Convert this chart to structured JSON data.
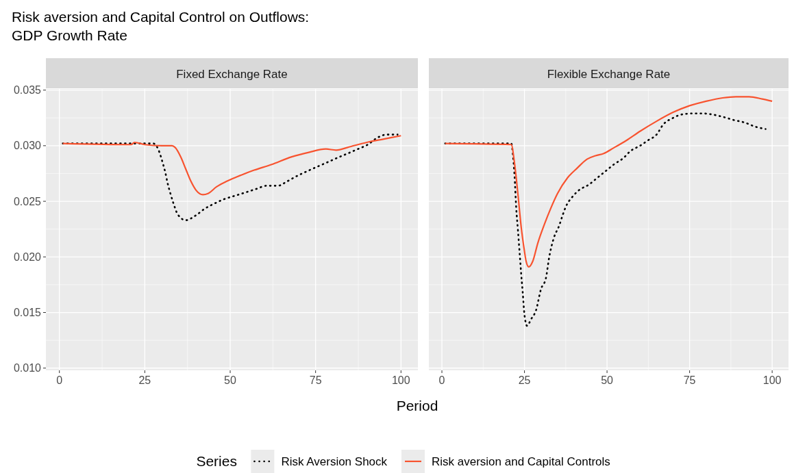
{
  "chart_data": [
    {
      "type": "line",
      "title": "Risk aversion and Capital Control on Outflows:\nGDP Growth Rate",
      "subtitle": "Fixed Exchange Rate",
      "xlabel": "Period",
      "legend": "bottom",
      "legend_title": "Series",
      "grid": true,
      "xlim": [
        -3.95,
        104.95
      ],
      "ylim": [
        0.0098,
        0.0351
      ],
      "xticks": [
        0,
        25,
        50,
        75,
        100
      ],
      "yticks": [
        {
          "value": 0.01,
          "label": "0.010"
        },
        0.015,
        {
          "value": 0.02,
          "label": "0.020"
        },
        0.025,
        {
          "value": 0.03,
          "label": "0.030"
        },
        0.035
      ],
      "series": [
        {
          "name": "Risk Aversion Shock",
          "color": "#000000",
          "line_style": "dotted",
          "x": [
            1,
            10,
            20,
            27.5,
            29.3,
            30.2,
            31,
            31.7,
            32.5,
            33.4,
            34.7,
            37,
            39.8,
            42.4,
            45.4,
            48.3,
            51.4,
            54.5,
            57.5,
            60.7,
            64,
            66.7,
            69.7,
            72.5,
            75.4,
            78.4,
            81.3,
            84.4,
            87.4,
            90.3,
            93,
            95.7,
            99
          ],
          "values": [
            0.0302,
            0.0302,
            0.0302,
            0.0302,
            0.0294,
            0.0285,
            0.0276,
            0.0266,
            0.0257,
            0.0248,
            0.0238,
            0.0233,
            0.0237,
            0.0243,
            0.0248,
            0.0252,
            0.0255,
            0.0258,
            0.0261,
            0.0264,
            0.0264,
            0.0268,
            0.0273,
            0.0277,
            0.0281,
            0.0285,
            0.0289,
            0.0293,
            0.0297,
            0.0301,
            0.0307,
            0.031,
            0.031
          ]
        },
        {
          "name": "Risk aversion and Capital Controls",
          "color": "#f8532f",
          "line_style": "solid",
          "x": [
            1,
            21,
            22,
            25,
            30,
            33,
            34,
            35.5,
            37,
            38.5,
            40,
            42,
            43.5,
            46,
            49,
            52,
            57,
            62,
            68,
            73,
            78,
            81,
            85,
            90,
            95,
            100
          ],
          "values": [
            0.0302,
            0.0301,
            0.0303,
            0.0301,
            0.03,
            0.03,
            0.0298,
            0.029,
            0.0279,
            0.0268,
            0.026,
            0.0256,
            0.0257,
            0.0263,
            0.0268,
            0.0272,
            0.0278,
            0.0283,
            0.029,
            0.0294,
            0.0297,
            0.0296,
            0.0299,
            0.0303,
            0.0306,
            0.0309
          ]
        }
      ]
    },
    {
      "type": "line",
      "subtitle": "Flexible Exchange Rate",
      "grid": true,
      "tick_labels": "x",
      "xlim": [
        -3.95,
        104.95
      ],
      "ylim": [
        0.0098,
        0.0351
      ],
      "xticks": [
        0,
        25,
        50,
        75,
        100
      ],
      "yticks": [
        0.01,
        0.015,
        0.02,
        0.025,
        0.03,
        0.035
      ],
      "series": [
        {
          "color": "#000000",
          "line_style": "dotted",
          "x": [
            1,
            10,
            21,
            21.5,
            22,
            22.5,
            23,
            23.5,
            24,
            24.5,
            25,
            25.8,
            27,
            28.5,
            30,
            31.5,
            32.5,
            34,
            35.5,
            36.5,
            37.5,
            39.5,
            41.5,
            44.5,
            47,
            49.5,
            52,
            55,
            57,
            60,
            62.5,
            65,
            67,
            70,
            72.5,
            76,
            79,
            82,
            85,
            88.5,
            91.5,
            95,
            98
          ],
          "values": [
            0.0302,
            0.0302,
            0.0302,
            0.0292,
            0.0273,
            0.0244,
            0.0225,
            0.0205,
            0.0185,
            0.0167,
            0.0148,
            0.0138,
            0.0144,
            0.0152,
            0.0171,
            0.0181,
            0.02,
            0.0218,
            0.0228,
            0.0237,
            0.0245,
            0.0254,
            0.026,
            0.0265,
            0.0271,
            0.0277,
            0.0283,
            0.0289,
            0.0295,
            0.03,
            0.0305,
            0.031,
            0.0319,
            0.0325,
            0.0328,
            0.0329,
            0.0329,
            0.0328,
            0.0326,
            0.0323,
            0.0321,
            0.0317,
            0.0315
          ]
        },
        {
          "color": "#f8532f",
          "line_style": "solid",
          "x": [
            1,
            21,
            22,
            23,
            24,
            25,
            25.5,
            26.3,
            27.5,
            29,
            31,
            33,
            35,
            38,
            41,
            44,
            46.5,
            49,
            52,
            56,
            60,
            65,
            70,
            75,
            80,
            85,
            89,
            93,
            97,
            100
          ],
          "values": [
            0.0302,
            0.0301,
            0.0284,
            0.0257,
            0.0227,
            0.0205,
            0.0196,
            0.0191,
            0.0196,
            0.0212,
            0.0229,
            0.0244,
            0.0257,
            0.0271,
            0.028,
            0.0288,
            0.0291,
            0.0293,
            0.0298,
            0.0305,
            0.0313,
            0.0322,
            0.033,
            0.0336,
            0.034,
            0.0343,
            0.0344,
            0.0344,
            0.0342,
            0.034
          ]
        }
      ]
    }
  ]
}
